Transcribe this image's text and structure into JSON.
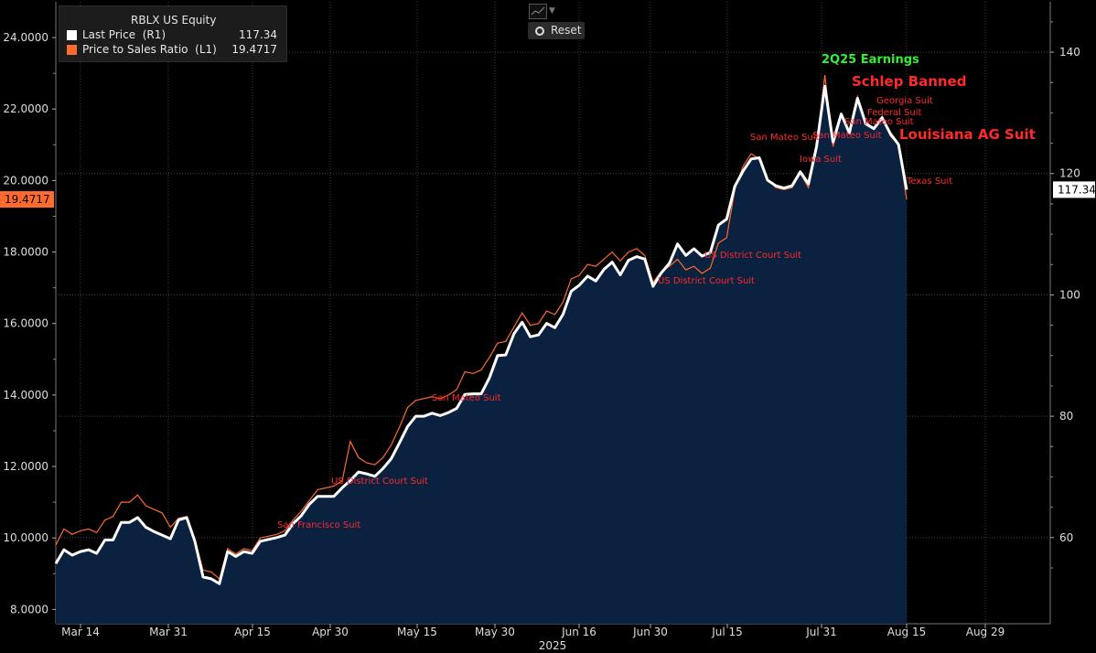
{
  "legend": {
    "ticker": "RBLX US Equity",
    "series1_label": "Last Price  (R1)",
    "series1_value": "117.34",
    "series2_label": "Price to Sales Ratio  (L1)",
    "series2_value": "19.4717"
  },
  "toolbar": {
    "reset_label": "Reset",
    "chart_type_icon": "line-chart-icon"
  },
  "colors": {
    "price": "#ffffff",
    "ratio": "#ff6a2e",
    "fill": "#0b2140",
    "annotation": "#ff2a2a",
    "earnings": "#33ee33"
  },
  "chart_data": {
    "type": "line",
    "title": "RBLX US Equity",
    "left_axis": {
      "label": "Price to Sales Ratio",
      "ylim": [
        7.6,
        25.0
      ],
      "ticks": [
        "8.0000",
        "10.0000",
        "12.0000",
        "14.0000",
        "16.0000",
        "18.0000",
        "20.0000",
        "22.0000",
        "24.0000"
      ],
      "last_value_label": "19.4717"
    },
    "right_axis": {
      "label": "Last Price",
      "ylim": [
        45.8,
        148.3
      ],
      "ticks": [
        "60",
        "80",
        "100",
        "120",
        "140"
      ],
      "last_value_label": "117.34"
    },
    "x_axis": {
      "tick_labels": [
        "Mar 14",
        "Mar 31",
        "Apr 15",
        "Apr 30",
        "May 15",
        "May 30",
        "Jun 16",
        "Jun 30",
        "Jul 15",
        "Jul 31",
        "Aug 15",
        "Aug 29"
      ],
      "year_label": "2025"
    },
    "series": [
      {
        "name": "Last Price (R1)",
        "axis": "right",
        "values": [
          55.7,
          58.0,
          57.1,
          57.7,
          58.0,
          57.4,
          59.6,
          59.6,
          62.5,
          62.5,
          63.3,
          61.7,
          61.0,
          60.4,
          59.8,
          62.9,
          63.3,
          59.4,
          53.5,
          53.2,
          52.4,
          57.7,
          56.9,
          57.7,
          57.4,
          59.4,
          59.7,
          60.0,
          60.4,
          62.3,
          63.6,
          65.5,
          66.8,
          66.8,
          66.8,
          68.2,
          69.4,
          70.8,
          70.5,
          70.1,
          71.4,
          73.0,
          75.6,
          78.3,
          80.0,
          80.0,
          80.5,
          80.1,
          80.6,
          81.3,
          83.6,
          83.7,
          83.7,
          86.3,
          90.0,
          90.1,
          93.6,
          95.5,
          93.1,
          93.4,
          95.3,
          94.6,
          96.8,
          100.6,
          101.6,
          103.1,
          102.3,
          104.2,
          105.4,
          103.3,
          105.7,
          106.3,
          105.9,
          101.4,
          103.6,
          105.2,
          108.4,
          106.5,
          107.6,
          106.4,
          107.0,
          111.5,
          112.5,
          117.9,
          120.4,
          122.4,
          122.6,
          118.9,
          118.0,
          117.6,
          118.0,
          120.3,
          118.3,
          124.5,
          134.4,
          125.2,
          129.8,
          126.7,
          132.4,
          128.2,
          127.4,
          129.2,
          126.6,
          124.8,
          117.34
        ]
      },
      {
        "name": "Price to Sales Ratio (L1)",
        "axis": "left",
        "values": [
          9.8,
          10.25,
          10.1,
          10.2,
          10.25,
          10.15,
          10.5,
          10.6,
          11.0,
          11.0,
          11.2,
          10.9,
          10.8,
          10.7,
          10.3,
          10.55,
          10.6,
          9.95,
          9.1,
          9.05,
          8.85,
          9.7,
          9.55,
          9.7,
          9.65,
          10.0,
          10.05,
          10.1,
          10.2,
          10.5,
          10.75,
          11.05,
          11.35,
          11.4,
          11.45,
          11.6,
          12.7,
          12.25,
          12.1,
          12.05,
          12.25,
          12.6,
          13.1,
          13.65,
          13.85,
          13.9,
          13.95,
          13.9,
          14.0,
          14.15,
          14.65,
          14.6,
          14.7,
          15.05,
          15.45,
          15.5,
          15.9,
          16.3,
          15.95,
          16.0,
          16.35,
          16.25,
          16.6,
          17.25,
          17.35,
          17.65,
          17.6,
          17.8,
          18.0,
          17.75,
          18.0,
          18.1,
          17.9,
          17.15,
          17.45,
          17.6,
          17.8,
          17.5,
          17.6,
          17.4,
          17.55,
          18.25,
          18.4,
          19.75,
          20.4,
          20.75,
          20.6,
          20.05,
          19.8,
          19.75,
          19.8,
          20.2,
          19.8,
          20.9,
          22.95,
          20.95,
          21.8,
          21.35,
          22.35,
          21.65,
          21.45,
          21.8,
          21.25,
          21.0,
          19.4717
        ]
      }
    ],
    "annotations": [
      {
        "text": "San Francisco Suit",
        "date_index": 27
      },
      {
        "text": "US District Court Suit",
        "date_index": 34
      },
      {
        "text": "San Mateo Suit",
        "date_index": 48
      },
      {
        "text": "US District Court Suit",
        "date_index": 73
      },
      {
        "text": "US District Court Suit",
        "date_index": 80
      },
      {
        "text": "San Mateo Suit",
        "date_index": 87
      },
      {
        "text": "Iowa Suit",
        "date_index": 92
      },
      {
        "text": "San Mateo Suit",
        "date_index": 94
      },
      {
        "text": "2Q25 Earnings",
        "date_index": 95,
        "style": "earnings"
      },
      {
        "text": "San Mateo Suit",
        "date_index": 98
      },
      {
        "text": "Schlep Banned",
        "date_index": 99,
        "style": "big"
      },
      {
        "text": "Federal Suit",
        "date_index": 100
      },
      {
        "text": "Georgia Suit",
        "date_index": 101
      },
      {
        "text": "Louisiana AG Suit",
        "date_index": 102,
        "style": "big"
      },
      {
        "text": "Texas Suit",
        "date_index": 104
      }
    ]
  }
}
